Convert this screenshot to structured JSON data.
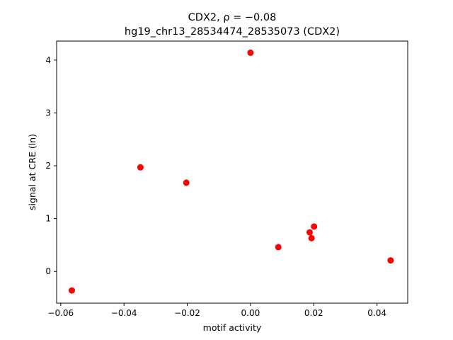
{
  "chart_data": {
    "type": "scatter",
    "title_line1": "CDX2, ρ = −0.08",
    "title_line2": "hg19_chr13_28534474_28535073 (CDX2)",
    "xlabel": "motif activity",
    "ylabel": "signal at CRE (ln)",
    "xlim": [
      -0.0613,
      0.0497
    ],
    "ylim": [
      -0.6,
      4.36
    ],
    "xticks": [
      -0.06,
      -0.04,
      -0.02,
      0.0,
      0.02,
      0.04
    ],
    "xtick_labels": [
      "−0.06",
      "−0.04",
      "−0.02",
      "0.00",
      "0.02",
      "0.04"
    ],
    "yticks": [
      0,
      1,
      2,
      3,
      4
    ],
    "ytick_labels": [
      "0",
      "1",
      "2",
      "3",
      "4"
    ],
    "grid": false,
    "marker_color": "#ff0000",
    "points": [
      {
        "x": -0.0565,
        "y": -0.36
      },
      {
        "x": -0.0348,
        "y": 1.97
      },
      {
        "x": -0.0203,
        "y": 1.68
      },
      {
        "x": 0.0,
        "y": 4.14
      },
      {
        "x": 0.0088,
        "y": 0.46
      },
      {
        "x": 0.0187,
        "y": 0.74
      },
      {
        "x": 0.0193,
        "y": 0.63
      },
      {
        "x": 0.0201,
        "y": 0.85
      },
      {
        "x": 0.0443,
        "y": 0.21
      }
    ]
  }
}
